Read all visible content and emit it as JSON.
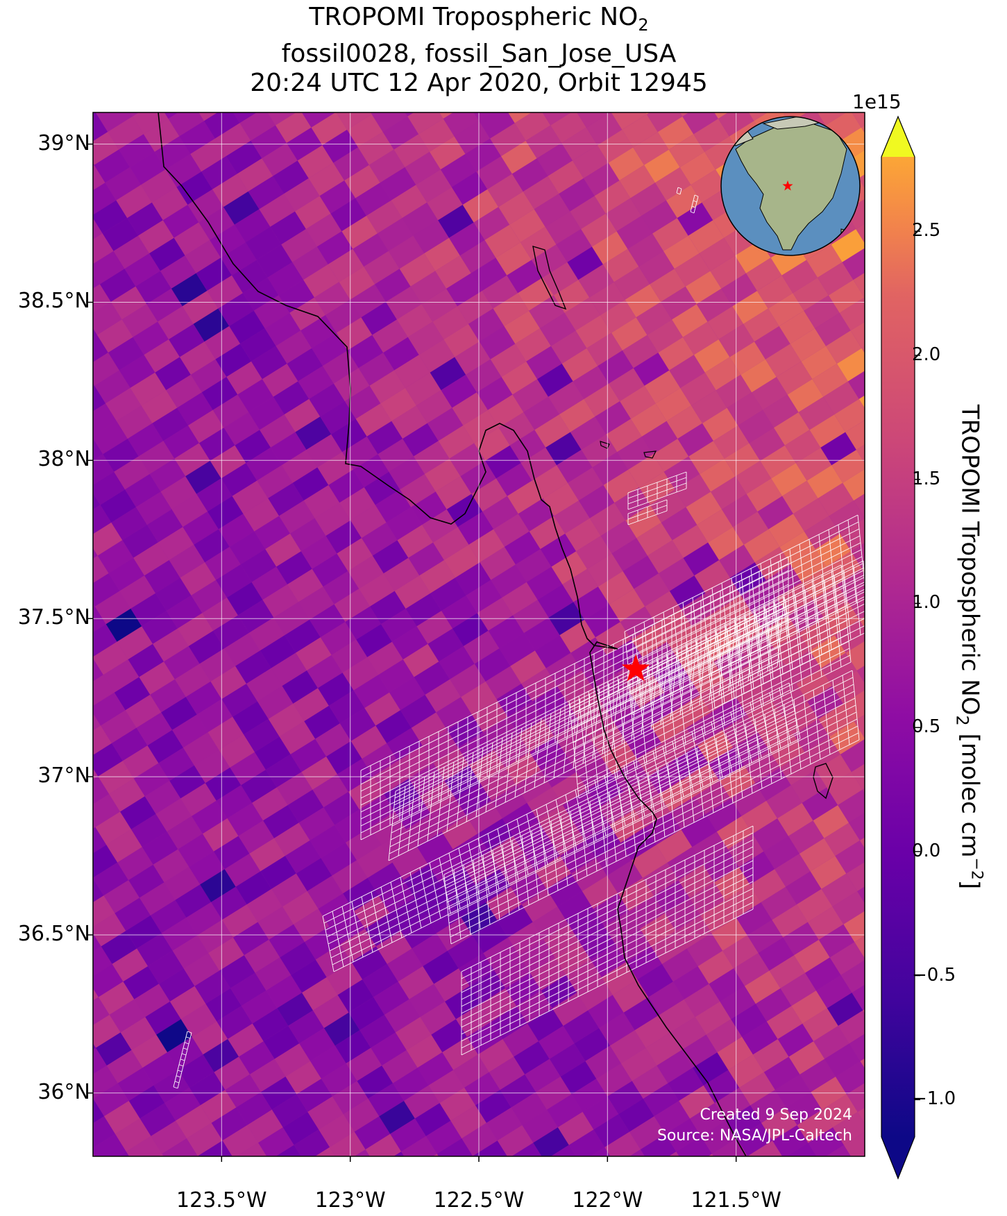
{
  "title": {
    "line1_prefix": "TROPOMI Tropospheric NO",
    "line1_subscript": "2",
    "line2": "fossil0028, fossil_San_Jose_USA",
    "line3": "20:24 UTC 12 Apr 2020, Orbit 12945"
  },
  "map": {
    "lat_range": [
      35.8,
      39.1
    ],
    "lon_range": [
      -124.0,
      -121.0
    ],
    "lat_ticks": [
      {
        "value": 39.0,
        "label": "39°N"
      },
      {
        "value": 38.5,
        "label": "38.5°N"
      },
      {
        "value": 38.0,
        "label": "38°N"
      },
      {
        "value": 37.5,
        "label": "37.5°N"
      },
      {
        "value": 37.0,
        "label": "37°N"
      },
      {
        "value": 36.5,
        "label": "36.5°N"
      },
      {
        "value": 36.0,
        "label": "36°N"
      }
    ],
    "lon_ticks": [
      {
        "value": -123.5,
        "label": "123.5°W"
      },
      {
        "value": -123.0,
        "label": "123°W"
      },
      {
        "value": -122.5,
        "label": "122.5°W"
      },
      {
        "value": -122.0,
        "label": "122°W"
      },
      {
        "value": -121.5,
        "label": "121.5°W"
      }
    ],
    "grid": true,
    "target": {
      "name": "fossil_San_Jose_USA",
      "lat": 37.34,
      "lon": -121.89,
      "marker": "star",
      "color": "#ff0000"
    },
    "inset_globe": {
      "center_lat": 30,
      "center_lon": -100,
      "marker_color": "#ff0000"
    }
  },
  "colorbar": {
    "label_prefix": "TROPOMI Tropospheric NO",
    "label_subscript": "2",
    "label_middle": " [molec cm",
    "label_superscript": "−2",
    "label_suffix": "]",
    "exponent": "1e15",
    "range": [
      -1.15,
      2.8
    ],
    "colormap": "plasma",
    "extend": "both",
    "ticks": [
      {
        "value": 2.5,
        "label": "2.5"
      },
      {
        "value": 2.0,
        "label": "2.0"
      },
      {
        "value": 1.5,
        "label": "1.5"
      },
      {
        "value": 1.0,
        "label": "1.0"
      },
      {
        "value": 0.5,
        "label": "0.5"
      },
      {
        "value": 0.0,
        "label": "0.0"
      },
      {
        "value": -0.5,
        "label": "−0.5"
      },
      {
        "value": -1.0,
        "label": "−1.0"
      }
    ]
  },
  "credits": {
    "created": "Created 9 Sep 2024",
    "source": "Source: NASA/JPL-Caltech"
  },
  "colors": {
    "grid": "#ffffff",
    "coast": "#000000",
    "ocean": "#5b8fbf",
    "land": "#a7b58a"
  }
}
